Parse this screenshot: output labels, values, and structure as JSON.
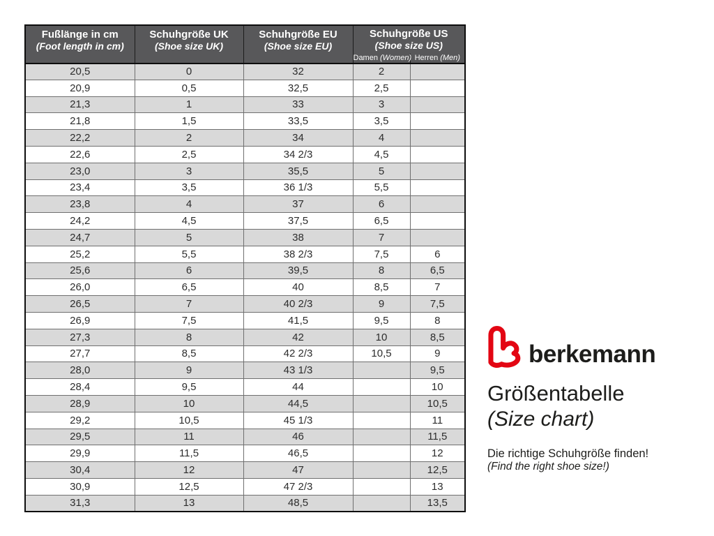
{
  "colors": {
    "header_bg": "#58585a",
    "header_text": "#ffffff",
    "row_alt_bg": "#d9d9d9",
    "row_bg": "#ffffff",
    "grid_line": "#6f6f6f",
    "outer_border": "#0d0d0d",
    "table_text": "#2d2d2d",
    "brand_red": "#e30613",
    "brand_text": "#1d1d1b"
  },
  "table": {
    "headers": {
      "foot_length": {
        "title": "Fußlänge in cm",
        "subtitle": "(Foot length in cm)"
      },
      "uk": {
        "title": "Schuhgröße UK",
        "subtitle": "(Shoe size UK)"
      },
      "eu": {
        "title": "Schuhgröße EU",
        "subtitle": "(Shoe size EU)"
      },
      "us": {
        "title": "Schuhgröße US",
        "subtitle": "(Shoe size US)",
        "women_label": "Damen",
        "women_label_en": "(Women)",
        "men_label": "Herren",
        "men_label_en": "(Men)"
      }
    }
  },
  "chart_data": {
    "type": "table",
    "title": "Größentabelle (Size chart)",
    "columns": [
      "Fußlänge in cm (Foot length in cm)",
      "Schuhgröße UK (Shoe size UK)",
      "Schuhgröße EU (Shoe size EU)",
      "Schuhgröße US Damen (Women)",
      "Schuhgröße US Herren (Men)"
    ],
    "rows": [
      [
        "20,5",
        "0",
        "32",
        "2",
        ""
      ],
      [
        "20,9",
        "0,5",
        "32,5",
        "2,5",
        ""
      ],
      [
        "21,3",
        "1",
        "33",
        "3",
        ""
      ],
      [
        "21,8",
        "1,5",
        "33,5",
        "3,5",
        ""
      ],
      [
        "22,2",
        "2",
        "34",
        "4",
        ""
      ],
      [
        "22,6",
        "2,5",
        "34 2/3",
        "4,5",
        ""
      ],
      [
        "23,0",
        "3",
        "35,5",
        "5",
        ""
      ],
      [
        "23,4",
        "3,5",
        "36 1/3",
        "5,5",
        ""
      ],
      [
        "23,8",
        "4",
        "37",
        "6",
        ""
      ],
      [
        "24,2",
        "4,5",
        "37,5",
        "6,5",
        ""
      ],
      [
        "24,7",
        "5",
        "38",
        "7",
        ""
      ],
      [
        "25,2",
        "5,5",
        "38 2/3",
        "7,5",
        "6"
      ],
      [
        "25,6",
        "6",
        "39,5",
        "8",
        "6,5"
      ],
      [
        "26,0",
        "6,5",
        "40",
        "8,5",
        "7"
      ],
      [
        "26,5",
        "7",
        "40 2/3",
        "9",
        "7,5"
      ],
      [
        "26,9",
        "7,5",
        "41,5",
        "9,5",
        "8"
      ],
      [
        "27,3",
        "8",
        "42",
        "10",
        "8,5"
      ],
      [
        "27,7",
        "8,5",
        "42 2/3",
        "10,5",
        "9"
      ],
      [
        "28,0",
        "9",
        "43 1/3",
        "",
        "9,5"
      ],
      [
        "28,4",
        "9,5",
        "44",
        "",
        "10"
      ],
      [
        "28,9",
        "10",
        "44,5",
        "",
        "10,5"
      ],
      [
        "29,2",
        "10,5",
        "45 1/3",
        "",
        "11"
      ],
      [
        "29,5",
        "11",
        "46",
        "",
        "11,5"
      ],
      [
        "29,9",
        "11,5",
        "46,5",
        "",
        "12"
      ],
      [
        "30,4",
        "12",
        "47",
        "",
        "12,5"
      ],
      [
        "30,9",
        "12,5",
        "47 2/3",
        "",
        "13"
      ],
      [
        "31,3",
        "13",
        "48,5",
        "",
        "13,5"
      ]
    ]
  },
  "branding": {
    "wordmark": "berkemann",
    "title": "Größentabelle",
    "title_en": "(Size chart)",
    "tagline": "Die richtige Schuhgröße finden!",
    "tagline_en": "(Find the right shoe size!)"
  }
}
